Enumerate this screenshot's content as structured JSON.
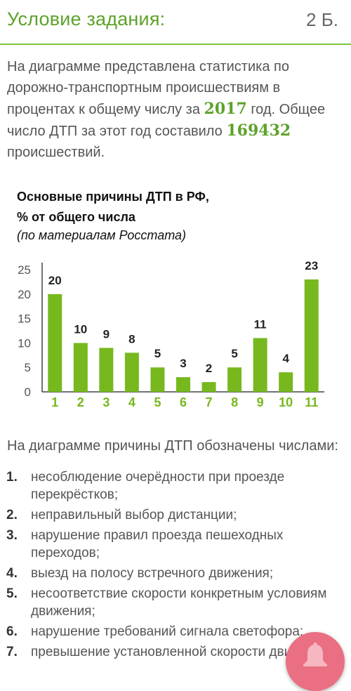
{
  "header": {
    "title": "Условие задания:",
    "points": "2 Б."
  },
  "intro": {
    "text1": "На диаграмме представлена статистика по дорожно-транспортным происшествиям в процентах к общему числу за ",
    "year": "2017",
    "text2": " год. Общее число ДТП за этот год составило ",
    "total": "169432",
    "text3": " происшествий."
  },
  "chart_data": {
    "type": "bar",
    "title_line1": "Основные причины ДТП в РФ,",
    "title_line2": "% от общего числа",
    "subtitle": "(по материалам Росстата)",
    "categories": [
      "1",
      "2",
      "3",
      "4",
      "5",
      "6",
      "7",
      "8",
      "9",
      "10",
      "11"
    ],
    "values": [
      20,
      10,
      9,
      8,
      5,
      3,
      2,
      5,
      11,
      4,
      23
    ],
    "ylim": [
      0,
      25
    ],
    "yticks": [
      0,
      5,
      10,
      15,
      20,
      25
    ],
    "grid": false,
    "bar_color": "#77b81e",
    "category_color": "#77b81e"
  },
  "causes": {
    "heading": "На диаграмме причины ДТП обозначены числами:",
    "items": [
      {
        "num": "1.",
        "text": "несоблюдение очерёдности при проезде перекрёстков;"
      },
      {
        "num": "2.",
        "text": "неправильный выбор дистанции;"
      },
      {
        "num": "3.",
        "text": "нарушение правил проезда пешеходных переходов;"
      },
      {
        "num": "4.",
        "text": "выезд на полосу встречного движения;"
      },
      {
        "num": "5.",
        "text": "несоответствие скорости конкретным условиям движения;"
      },
      {
        "num": "6.",
        "text": "нарушение требований сигнала светофора;"
      },
      {
        "num": "7.",
        "text": "превышение установленной скорости движения;"
      }
    ]
  },
  "fab": {
    "icon": "bell-icon",
    "color": "#ea6f82"
  }
}
